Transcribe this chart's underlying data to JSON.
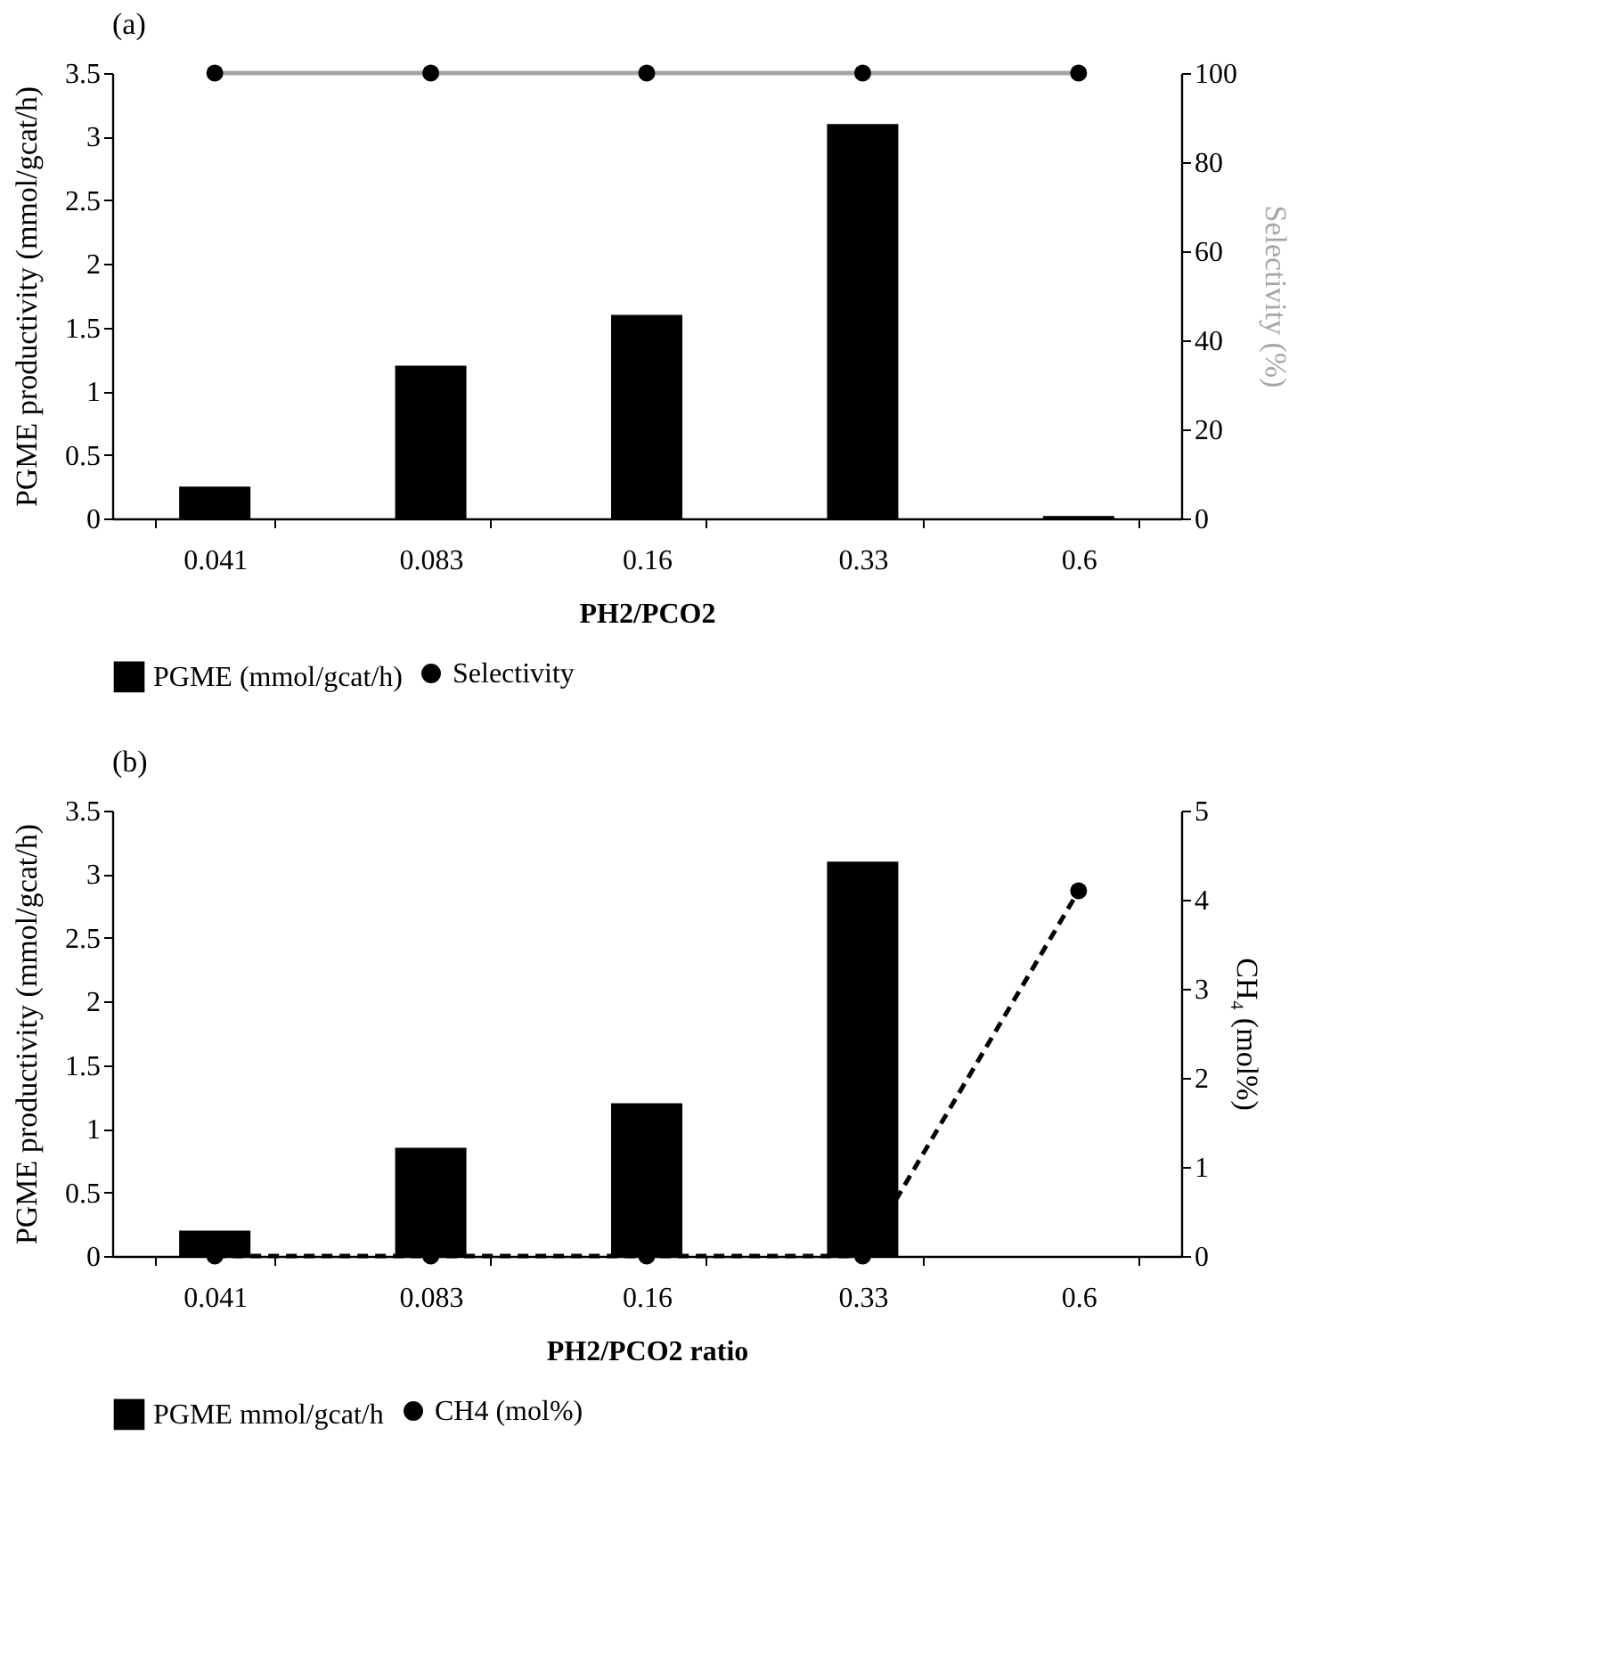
{
  "chart_data": [
    {
      "type": "bar",
      "title": "(a)",
      "categories": [
        "0.041",
        "0.083",
        "0.16",
        "0.33",
        "0.6"
      ],
      "xlabel": "PH2/PCO2",
      "ylabel": "PGME productivity (mmol/gcat/h)",
      "y2label": "Selectivity (%)",
      "ylim": [
        0,
        3.5
      ],
      "yticks": [
        0,
        0.5,
        1,
        1.5,
        2,
        2.5,
        3,
        3.5
      ],
      "y2lim": [
        0,
        100
      ],
      "y2ticks": [
        0,
        20,
        40,
        60,
        80,
        100
      ],
      "grid": false,
      "legend": "bottom",
      "series": [
        {
          "name": "PGME (mmol/gcat/h)",
          "type": "bar",
          "color": "#000000",
          "values": [
            0.25,
            1.2,
            1.6,
            3.1,
            0.02
          ]
        },
        {
          "name": "Selectivity",
          "type": "line",
          "axis": "y2",
          "color": "#a6a6a6",
          "marker": "circle",
          "line_style": "solid",
          "values": [
            100,
            100,
            100,
            100,
            100
          ]
        }
      ]
    },
    {
      "type": "bar",
      "title": "(b)",
      "categories": [
        "0.041",
        "0.083",
        "0.16",
        "0.33",
        "0.6"
      ],
      "xlabel": "PH2/PCO2 ratio",
      "ylabel": "PGME productivity (mmol/gcat/h)",
      "y2label": "CH₄ (mol%)",
      "ylim": [
        0,
        3.5
      ],
      "yticks": [
        0,
        0.5,
        1,
        1.5,
        2,
        2.5,
        3,
        3.5
      ],
      "y2lim": [
        0,
        5
      ],
      "y2ticks": [
        0,
        1,
        2,
        3,
        4,
        5
      ],
      "grid": false,
      "legend": "bottom",
      "series": [
        {
          "name": "PGME mmol/gcat/h",
          "type": "bar",
          "color": "#000000",
          "values": [
            0.2,
            0.85,
            1.2,
            3.1,
            0
          ]
        },
        {
          "name": "CH4 (mol%)",
          "type": "line",
          "axis": "y2",
          "color": "#000000",
          "marker": "circle",
          "line_style": "dashed",
          "values": [
            0,
            0,
            0,
            0,
            4.1
          ]
        }
      ]
    }
  ]
}
